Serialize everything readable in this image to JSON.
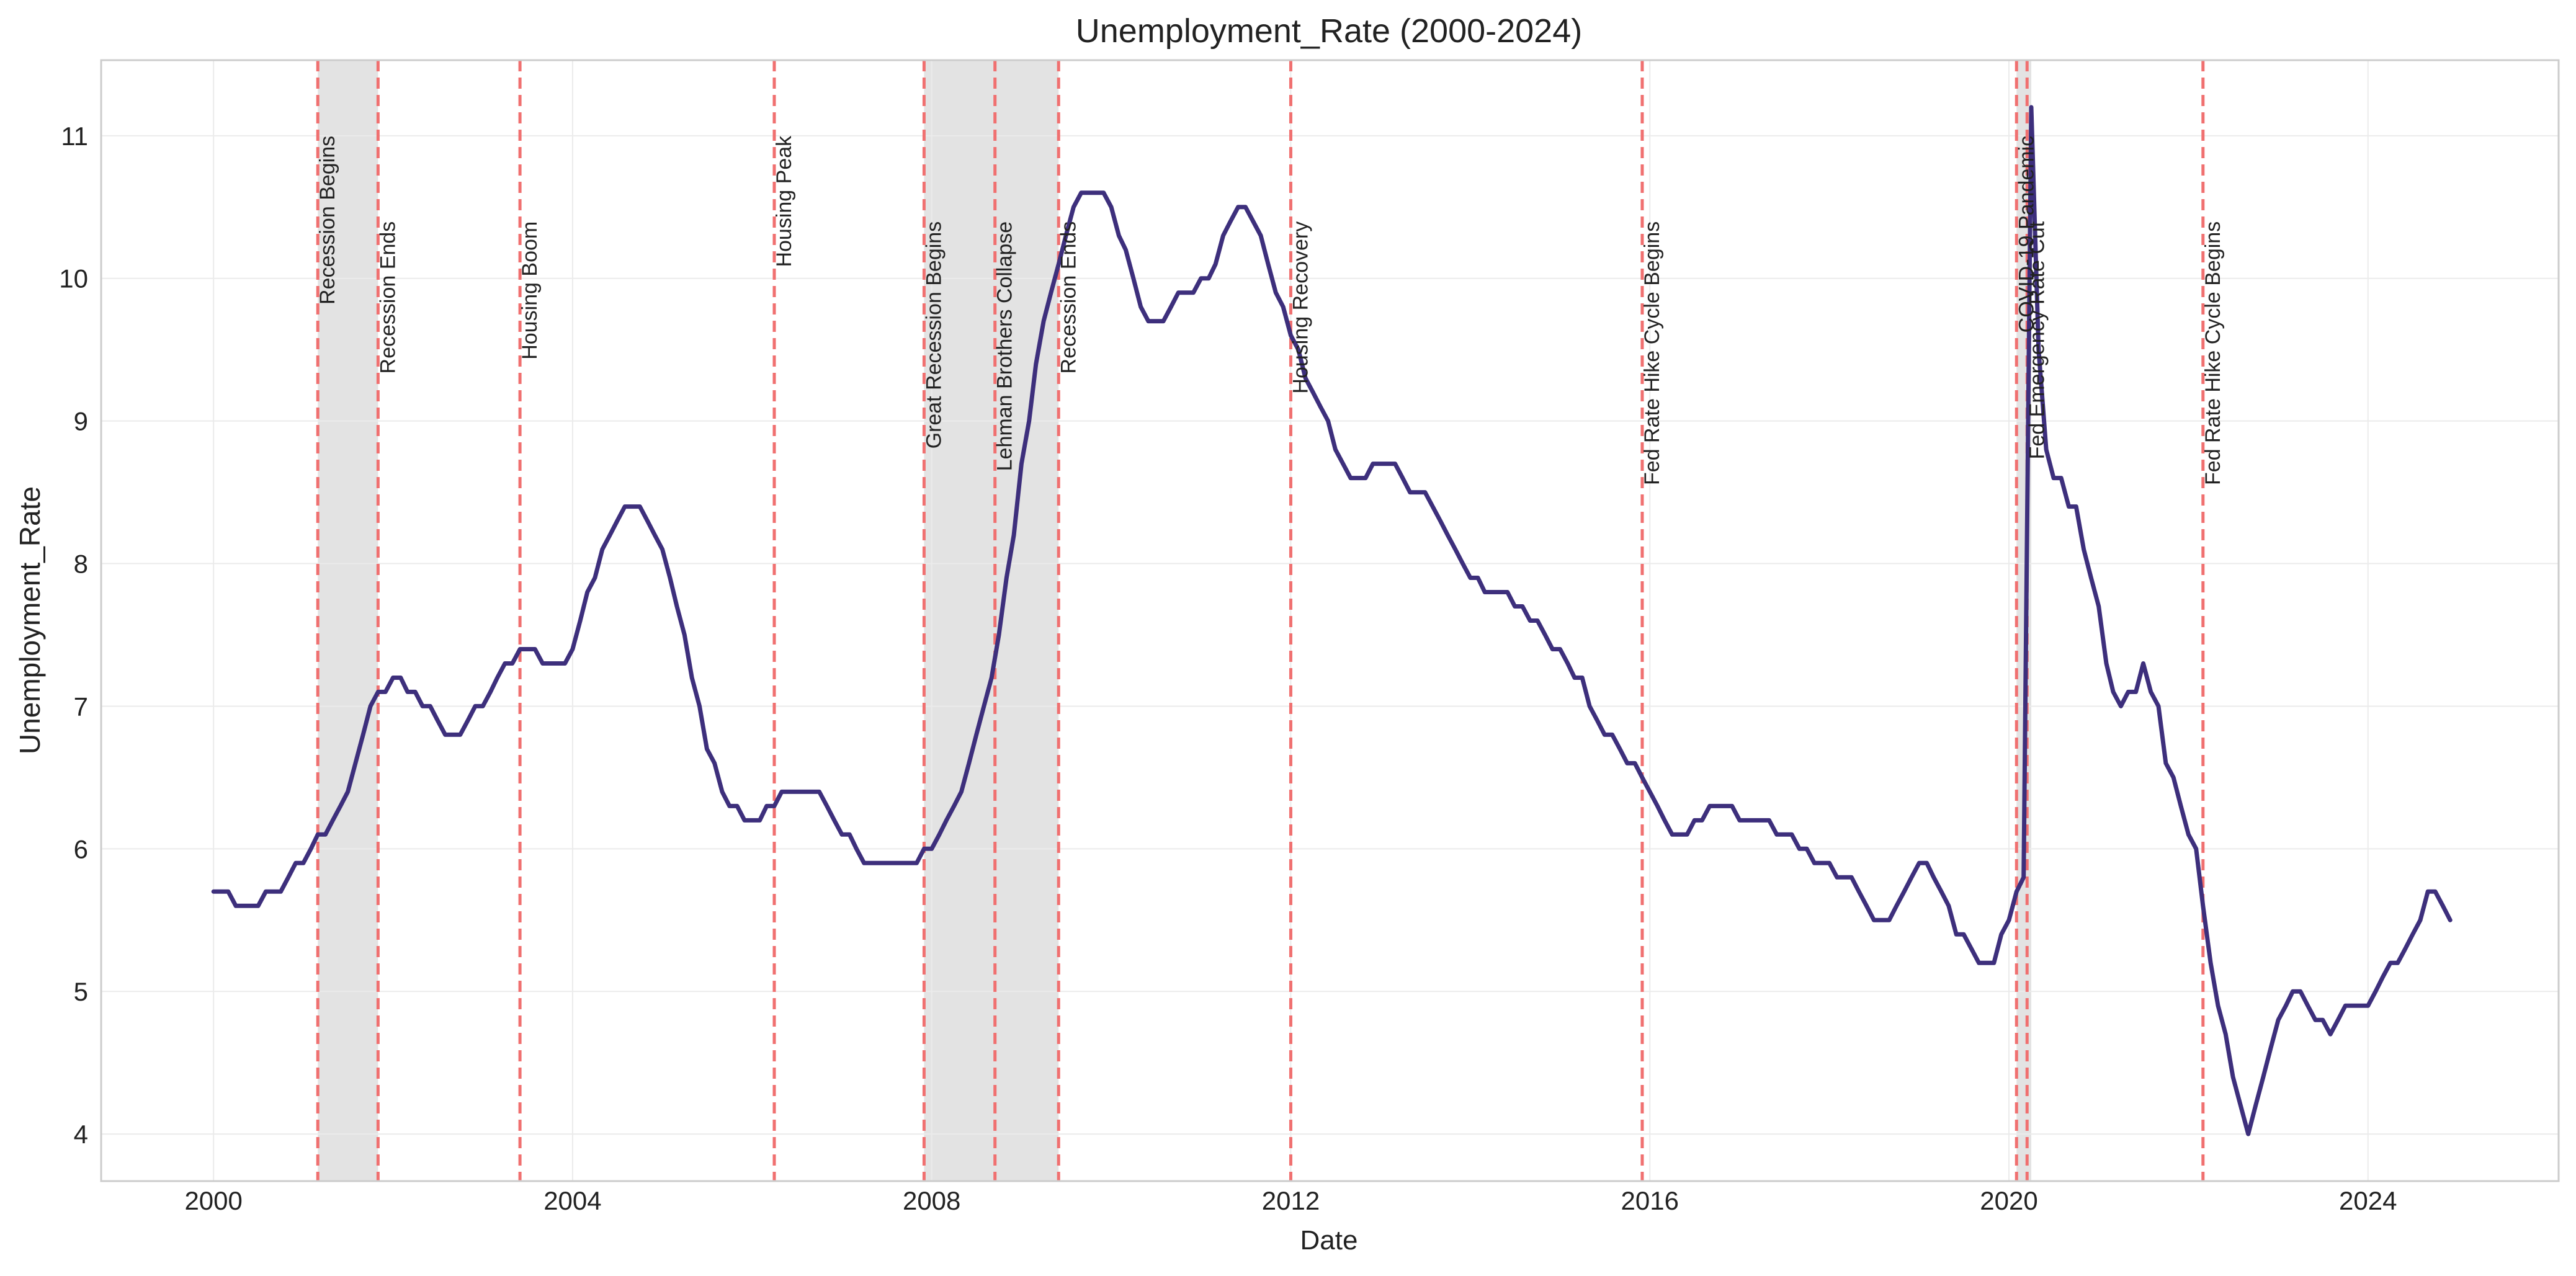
{
  "chart_data": {
    "type": "line",
    "title": "Unemployment_Rate (2000-2024)",
    "xlabel": "Date",
    "ylabel": "Unemployment_Rate",
    "xlim": [
      "1998-10-01",
      "2026-02-15"
    ],
    "ylim": [
      3.67,
      11.53
    ],
    "x_ticks": [
      "2000",
      "2004",
      "2008",
      "2012",
      "2016",
      "2020",
      "2024"
    ],
    "y_ticks": [
      "4",
      "5",
      "6",
      "7",
      "8",
      "9",
      "10",
      "11"
    ],
    "grid": true,
    "legend": "none",
    "colors": {
      "line": "#3d2f7c",
      "event_line": "#f07070",
      "shade": "#d9d9d9",
      "grid": "#ebebeb",
      "spine": "#cccccc"
    },
    "recession_periods": [
      {
        "start": "2001-03-01",
        "end": "2001-11-01"
      },
      {
        "start": "2007-12-01",
        "end": "2009-06-01"
      },
      {
        "start": "2020-02-01",
        "end": "2020-04-01"
      }
    ],
    "events": [
      {
        "date": "2001-03-01",
        "label": "Recession Begins",
        "label_top": 11.0
      },
      {
        "date": "2001-11-01",
        "label": "Recession Ends",
        "label_top": 10.4
      },
      {
        "date": "2003-06-01",
        "label": "Housing Boom",
        "label_top": 10.4
      },
      {
        "date": "2006-04-01",
        "label": "Housing Peak",
        "label_top": 11.0
      },
      {
        "date": "2007-12-01",
        "label": "Great Recession Begins",
        "label_top": 10.4
      },
      {
        "date": "2008-09-15",
        "label": "Lehman Brothers Collapse",
        "label_top": 10.4
      },
      {
        "date": "2009-06-01",
        "label": "Recession Ends",
        "label_top": 10.4
      },
      {
        "date": "2012-01-01",
        "label": "Housing Recovery",
        "label_top": 10.4
      },
      {
        "date": "2015-12-01",
        "label": "Fed Rate Hike Cycle Begins",
        "label_top": 10.4
      },
      {
        "date": "2020-02-01",
        "label": "COVID-19 Pandemic",
        "label_top": 11.0
      },
      {
        "date": "2020-03-15",
        "label": "Fed Emergency Rate Cut",
        "label_top": 10.4
      },
      {
        "date": "2022-03-01",
        "label": "Fed Rate Hike Cycle Begins",
        "label_top": 10.4
      }
    ],
    "series": [
      {
        "points": [
          [
            "2000-01-01",
            5.7
          ],
          [
            "2000-03-01",
            5.7
          ],
          [
            "2000-04-01",
            5.6
          ],
          [
            "2000-06-01",
            5.6
          ],
          [
            "2000-07-01",
            5.6
          ],
          [
            "2000-08-01",
            5.7
          ],
          [
            "2000-10-01",
            5.7
          ],
          [
            "2000-11-01",
            5.8
          ],
          [
            "2000-12-01",
            5.9
          ],
          [
            "2001-01-01",
            5.9
          ],
          [
            "2001-02-01",
            6.0
          ],
          [
            "2001-03-01",
            6.1
          ],
          [
            "2001-04-01",
            6.1
          ],
          [
            "2001-05-01",
            6.2
          ],
          [
            "2001-06-01",
            6.3
          ],
          [
            "2001-07-01",
            6.4
          ],
          [
            "2001-08-01",
            6.6
          ],
          [
            "2001-09-01",
            6.8
          ],
          [
            "2001-10-01",
            7.0
          ],
          [
            "2001-11-01",
            7.1
          ],
          [
            "2001-12-01",
            7.1
          ],
          [
            "2002-01-01",
            7.2
          ],
          [
            "2002-02-01",
            7.2
          ],
          [
            "2002-03-01",
            7.1
          ],
          [
            "2002-04-01",
            7.1
          ],
          [
            "2002-05-01",
            7.0
          ],
          [
            "2002-06-01",
            7.0
          ],
          [
            "2002-07-01",
            6.9
          ],
          [
            "2002-08-01",
            6.8
          ],
          [
            "2002-10-01",
            6.8
          ],
          [
            "2002-11-01",
            6.9
          ],
          [
            "2002-12-01",
            7.0
          ],
          [
            "2003-01-01",
            7.0
          ],
          [
            "2003-02-01",
            7.1
          ],
          [
            "2003-03-01",
            7.2
          ],
          [
            "2003-04-01",
            7.3
          ],
          [
            "2003-05-01",
            7.3
          ],
          [
            "2003-06-01",
            7.4
          ],
          [
            "2003-08-01",
            7.4
          ],
          [
            "2003-09-01",
            7.3
          ],
          [
            "2003-12-01",
            7.3
          ],
          [
            "2004-01-01",
            7.4
          ],
          [
            "2004-02-01",
            7.6
          ],
          [
            "2004-03-01",
            7.8
          ],
          [
            "2004-04-01",
            7.9
          ],
          [
            "2004-05-01",
            8.1
          ],
          [
            "2004-06-01",
            8.2
          ],
          [
            "2004-07-01",
            8.3
          ],
          [
            "2004-08-01",
            8.4
          ],
          [
            "2004-10-01",
            8.4
          ],
          [
            "2004-11-01",
            8.3
          ],
          [
            "2004-12-01",
            8.2
          ],
          [
            "2005-01-01",
            8.1
          ],
          [
            "2005-02-01",
            7.9
          ],
          [
            "2005-03-01",
            7.7
          ],
          [
            "2005-04-01",
            7.5
          ],
          [
            "2005-05-01",
            7.2
          ],
          [
            "2005-06-01",
            7.0
          ],
          [
            "2005-07-01",
            6.7
          ],
          [
            "2005-08-01",
            6.6
          ],
          [
            "2005-09-01",
            6.4
          ],
          [
            "2005-10-01",
            6.3
          ],
          [
            "2005-11-01",
            6.3
          ],
          [
            "2005-12-01",
            6.2
          ],
          [
            "2006-02-01",
            6.2
          ],
          [
            "2006-03-01",
            6.3
          ],
          [
            "2006-04-01",
            6.3
          ],
          [
            "2006-05-01",
            6.4
          ],
          [
            "2006-10-01",
            6.4
          ],
          [
            "2006-11-01",
            6.3
          ],
          [
            "2006-12-01",
            6.2
          ],
          [
            "2007-01-01",
            6.1
          ],
          [
            "2007-02-01",
            6.1
          ],
          [
            "2007-03-01",
            6.0
          ],
          [
            "2007-04-01",
            5.9
          ],
          [
            "2007-11-01",
            5.9
          ],
          [
            "2007-12-01",
            6.0
          ],
          [
            "2008-01-01",
            6.0
          ],
          [
            "2008-02-01",
            6.1
          ],
          [
            "2008-03-01",
            6.2
          ],
          [
            "2008-04-01",
            6.3
          ],
          [
            "2008-05-01",
            6.4
          ],
          [
            "2008-06-01",
            6.6
          ],
          [
            "2008-07-01",
            6.8
          ],
          [
            "2008-08-01",
            7.0
          ],
          [
            "2008-09-01",
            7.2
          ],
          [
            "2008-10-01",
            7.5
          ],
          [
            "2008-11-01",
            7.9
          ],
          [
            "2008-12-01",
            8.2
          ],
          [
            "2009-01-01",
            8.7
          ],
          [
            "2009-02-01",
            9.0
          ],
          [
            "2009-03-01",
            9.4
          ],
          [
            "2009-04-01",
            9.7
          ],
          [
            "2009-05-01",
            9.9
          ],
          [
            "2009-06-01",
            10.1
          ],
          [
            "2009-07-01",
            10.3
          ],
          [
            "2009-08-01",
            10.5
          ],
          [
            "2009-09-01",
            10.6
          ],
          [
            "2009-12-01",
            10.6
          ],
          [
            "2010-01-01",
            10.5
          ],
          [
            "2010-02-01",
            10.3
          ],
          [
            "2010-03-01",
            10.2
          ],
          [
            "2010-04-01",
            10.0
          ],
          [
            "2010-05-01",
            9.8
          ],
          [
            "2010-06-01",
            9.7
          ],
          [
            "2010-08-01",
            9.7
          ],
          [
            "2010-09-01",
            9.8
          ],
          [
            "2010-10-01",
            9.9
          ],
          [
            "2010-12-01",
            9.9
          ],
          [
            "2011-01-01",
            10.0
          ],
          [
            "2011-02-01",
            10.0
          ],
          [
            "2011-03-01",
            10.1
          ],
          [
            "2011-04-01",
            10.3
          ],
          [
            "2011-05-01",
            10.4
          ],
          [
            "2011-06-01",
            10.5
          ],
          [
            "2011-07-01",
            10.5
          ],
          [
            "2011-08-01",
            10.4
          ],
          [
            "2011-09-01",
            10.3
          ],
          [
            "2011-10-01",
            10.1
          ],
          [
            "2011-11-01",
            9.9
          ],
          [
            "2011-12-01",
            9.8
          ],
          [
            "2012-01-01",
            9.6
          ],
          [
            "2012-02-01",
            9.5
          ],
          [
            "2012-03-01",
            9.3
          ],
          [
            "2012-04-01",
            9.2
          ],
          [
            "2012-05-01",
            9.1
          ],
          [
            "2012-06-01",
            9.0
          ],
          [
            "2012-07-01",
            8.8
          ],
          [
            "2012-08-01",
            8.7
          ],
          [
            "2012-09-01",
            8.6
          ],
          [
            "2012-11-01",
            8.6
          ],
          [
            "2012-12-01",
            8.7
          ],
          [
            "2013-01-01",
            8.7
          ],
          [
            "2013-03-01",
            8.7
          ],
          [
            "2013-04-01",
            8.6
          ],
          [
            "2013-05-01",
            8.5
          ],
          [
            "2013-07-01",
            8.5
          ],
          [
            "2013-08-01",
            8.4
          ],
          [
            "2013-09-01",
            8.3
          ],
          [
            "2013-10-01",
            8.2
          ],
          [
            "2013-11-01",
            8.1
          ],
          [
            "2013-12-01",
            8.0
          ],
          [
            "2014-01-01",
            7.9
          ],
          [
            "2014-02-01",
            7.9
          ],
          [
            "2014-03-01",
            7.8
          ],
          [
            "2014-06-01",
            7.8
          ],
          [
            "2014-07-01",
            7.7
          ],
          [
            "2014-08-01",
            7.7
          ],
          [
            "2014-09-01",
            7.6
          ],
          [
            "2014-10-01",
            7.6
          ],
          [
            "2014-11-01",
            7.5
          ],
          [
            "2014-12-01",
            7.4
          ],
          [
            "2015-01-01",
            7.4
          ],
          [
            "2015-02-01",
            7.3
          ],
          [
            "2015-03-01",
            7.2
          ],
          [
            "2015-04-01",
            7.2
          ],
          [
            "2015-05-01",
            7.0
          ],
          [
            "2015-06-01",
            6.9
          ],
          [
            "2015-07-01",
            6.8
          ],
          [
            "2015-08-01",
            6.8
          ],
          [
            "2015-09-01",
            6.7
          ],
          [
            "2015-10-01",
            6.6
          ],
          [
            "2015-11-01",
            6.6
          ],
          [
            "2015-12-01",
            6.5
          ],
          [
            "2016-01-01",
            6.4
          ],
          [
            "2016-02-01",
            6.3
          ],
          [
            "2016-03-01",
            6.2
          ],
          [
            "2016-04-01",
            6.1
          ],
          [
            "2016-06-01",
            6.1
          ],
          [
            "2016-07-01",
            6.2
          ],
          [
            "2016-08-01",
            6.2
          ],
          [
            "2016-09-01",
            6.3
          ],
          [
            "2016-12-01",
            6.3
          ],
          [
            "2017-01-01",
            6.2
          ],
          [
            "2017-05-01",
            6.2
          ],
          [
            "2017-06-01",
            6.1
          ],
          [
            "2017-08-01",
            6.1
          ],
          [
            "2017-09-01",
            6.0
          ],
          [
            "2017-10-01",
            6.0
          ],
          [
            "2017-11-01",
            5.9
          ],
          [
            "2018-01-01",
            5.9
          ],
          [
            "2018-02-01",
            5.8
          ],
          [
            "2018-04-01",
            5.8
          ],
          [
            "2018-05-01",
            5.7
          ],
          [
            "2018-06-01",
            5.6
          ],
          [
            "2018-07-01",
            5.5
          ],
          [
            "2018-09-01",
            5.5
          ],
          [
            "2018-10-01",
            5.6
          ],
          [
            "2018-11-01",
            5.7
          ],
          [
            "2018-12-01",
            5.8
          ],
          [
            "2019-01-01",
            5.9
          ],
          [
            "2019-02-01",
            5.9
          ],
          [
            "2019-03-01",
            5.8
          ],
          [
            "2019-04-01",
            5.7
          ],
          [
            "2019-05-01",
            5.6
          ],
          [
            "2019-06-01",
            5.4
          ],
          [
            "2019-07-01",
            5.4
          ],
          [
            "2019-08-01",
            5.3
          ],
          [
            "2019-09-01",
            5.2
          ],
          [
            "2019-11-01",
            5.2
          ],
          [
            "2019-12-01",
            5.4
          ],
          [
            "2020-01-01",
            5.5
          ],
          [
            "2020-02-01",
            5.7
          ],
          [
            "2020-03-01",
            5.8
          ],
          [
            "2020-04-01",
            11.2
          ],
          [
            "2020-05-01",
            9.5
          ],
          [
            "2020-06-01",
            8.8
          ],
          [
            "2020-07-01",
            8.6
          ],
          [
            "2020-08-01",
            8.6
          ],
          [
            "2020-09-01",
            8.4
          ],
          [
            "2020-10-01",
            8.4
          ],
          [
            "2020-11-01",
            8.1
          ],
          [
            "2020-12-01",
            7.9
          ],
          [
            "2021-01-01",
            7.7
          ],
          [
            "2021-02-01",
            7.3
          ],
          [
            "2021-03-01",
            7.1
          ],
          [
            "2021-04-01",
            7.0
          ],
          [
            "2021-05-01",
            7.1
          ],
          [
            "2021-06-01",
            7.1
          ],
          [
            "2021-07-01",
            7.3
          ],
          [
            "2021-08-01",
            7.1
          ],
          [
            "2021-09-01",
            7.0
          ],
          [
            "2021-10-01",
            6.6
          ],
          [
            "2021-11-01",
            6.5
          ],
          [
            "2021-12-01",
            6.3
          ],
          [
            "2022-01-01",
            6.1
          ],
          [
            "2022-02-01",
            6.0
          ],
          [
            "2022-03-01",
            5.6
          ],
          [
            "2022-04-01",
            5.2
          ],
          [
            "2022-05-01",
            4.9
          ],
          [
            "2022-06-01",
            4.7
          ],
          [
            "2022-07-01",
            4.4
          ],
          [
            "2022-08-01",
            4.2
          ],
          [
            "2022-09-01",
            4.0
          ],
          [
            "2022-10-01",
            4.2
          ],
          [
            "2022-11-01",
            4.4
          ],
          [
            "2022-12-01",
            4.6
          ],
          [
            "2023-01-01",
            4.8
          ],
          [
            "2023-02-01",
            4.9
          ],
          [
            "2023-03-01",
            5.0
          ],
          [
            "2023-04-01",
            5.0
          ],
          [
            "2023-05-01",
            4.9
          ],
          [
            "2023-06-01",
            4.8
          ],
          [
            "2023-07-01",
            4.8
          ],
          [
            "2023-08-01",
            4.7
          ],
          [
            "2023-09-01",
            4.8
          ],
          [
            "2023-10-01",
            4.9
          ],
          [
            "2023-12-01",
            4.9
          ],
          [
            "2024-01-01",
            4.9
          ],
          [
            "2024-02-01",
            5.0
          ],
          [
            "2024-03-01",
            5.1
          ],
          [
            "2024-04-01",
            5.2
          ],
          [
            "2024-05-01",
            5.2
          ],
          [
            "2024-06-01",
            5.3
          ],
          [
            "2024-07-01",
            5.4
          ],
          [
            "2024-08-01",
            5.5
          ],
          [
            "2024-09-01",
            5.7
          ],
          [
            "2024-10-01",
            5.7
          ],
          [
            "2024-11-01",
            5.6
          ],
          [
            "2024-12-01",
            5.5
          ]
        ]
      }
    ]
  }
}
